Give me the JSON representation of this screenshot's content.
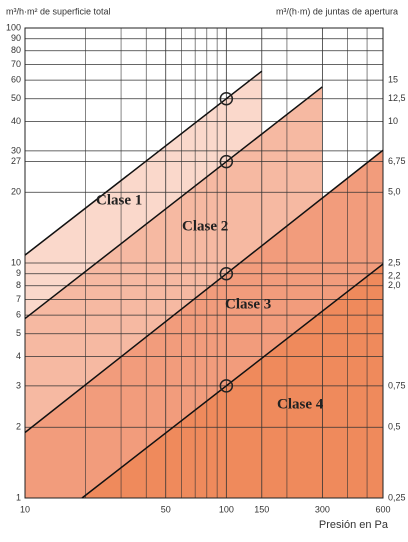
{
  "chart_data": {
    "type": "line",
    "ylabel": "m³/h·m² de superficie total",
    "y2label": "m³/(h·m) de juntas de apertura",
    "xlabel": "Presión en Pa",
    "xscale": "log",
    "yscale": "log",
    "xlim": [
      10,
      600
    ],
    "ylim": [
      1,
      100
    ],
    "y2lim": [
      0.25,
      25
    ],
    "xticks": [
      10,
      50,
      100,
      150,
      300,
      600
    ],
    "x_minor_ticks": [
      20,
      30,
      40,
      60,
      70,
      80,
      90,
      200,
      400,
      500
    ],
    "yticks": [
      1,
      2,
      3,
      4,
      5,
      6,
      7,
      8,
      9,
      10,
      20,
      27,
      30,
      40,
      50,
      60,
      70,
      80,
      90,
      100
    ],
    "y2ticks": [
      {
        "value": 0.25,
        "label": "0,25"
      },
      {
        "value": 0.5,
        "label": "0,5"
      },
      {
        "value": 0.75,
        "label": "0,75"
      },
      {
        "value": 2,
        "label": "2,0"
      },
      {
        "value": 2.2,
        "label": "2,2"
      },
      {
        "value": 2.5,
        "label": "2,5"
      },
      {
        "value": 5,
        "label": "5,0"
      },
      {
        "value": 6.75,
        "label": "6,75"
      },
      10,
      {
        "value": 12.5,
        "label": "12,5"
      },
      15
    ],
    "grid": true,
    "series": [
      {
        "name": "Clase 1",
        "color": "#fad8cb",
        "x": [
          10,
          150
        ],
        "values": [
          10.8,
          65.5
        ]
      },
      {
        "name": "Clase 2",
        "color": "#f6b9a2",
        "x": [
          10,
          300
        ],
        "values": [
          5.8,
          56.2
        ]
      },
      {
        "name": "Clase 3",
        "color": "#f29c7c",
        "x": [
          10,
          600
        ],
        "values": [
          1.9,
          30.2
        ]
      },
      {
        "name": "Clase 4",
        "color": "#ef8a5c",
        "x": [
          19.2,
          600
        ],
        "values": [
          1,
          9.9
        ]
      }
    ],
    "markers": {
      "x": [
        100,
        100,
        100,
        100
      ],
      "values": [
        50,
        27,
        9,
        3
      ]
    }
  }
}
